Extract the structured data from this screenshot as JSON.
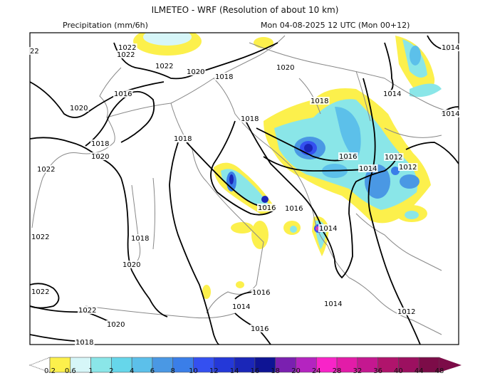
{
  "header": {
    "title": "ILMETEO - WRF (Resolution of about 10 km)",
    "variable": "Precipitation (mm/6h)",
    "valid_time": "Mon 04-08-2025 12 UTC (Mon 00+12)"
  },
  "map": {
    "isobar_labels": [
      "1022",
      "1022",
      "1022",
      "1020",
      "1018",
      "1016",
      "1020",
      "1018",
      "1020",
      "1018",
      "1018",
      "1020",
      "1014",
      "1014",
      "1018",
      "1014",
      "1016",
      "1012",
      "1014",
      "1012",
      "1022",
      "1016",
      "1016",
      "1014",
      "1022",
      "1018",
      "1020",
      "1022",
      "1022",
      "1016",
      "1014",
      "1014",
      "1012",
      "1020",
      "1016",
      "1018",
      "22"
    ]
  },
  "colorbar": {
    "labels": [
      "0.2",
      "0.6",
      "1",
      "2",
      "4",
      "6",
      "8",
      "10",
      "12",
      "14",
      "16",
      "18",
      "20",
      "24",
      "28",
      "32",
      "36",
      "40",
      "44",
      "48"
    ],
    "colors": [
      "#fcf04c",
      "#d6f6f8",
      "#8ae6e8",
      "#66d6ea",
      "#5cc0ea",
      "#4a98e4",
      "#3a7ee8",
      "#3450f0",
      "#2438d8",
      "#1a26b8",
      "#0e1494",
      "#7a20b0",
      "#b424c0",
      "#f824c8",
      "#e21ca8",
      "#c41890",
      "#b0146c",
      "#9c1060",
      "#7c0c48"
    ]
  }
}
